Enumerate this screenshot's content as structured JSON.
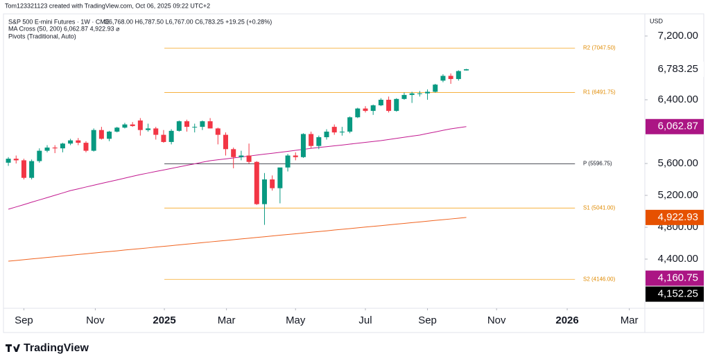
{
  "credit": "Tom123321123 created with TradingView.com, Oct 06, 2025 09:22 UTC+2",
  "brand": "TradingView",
  "chart_data": {
    "type": "candlestick",
    "title": "S&P 500 E-mini Futures · 1W · CME",
    "ohlc_text": "O6,768.00 H6,787.50 L6,767.00 C6,783.25 +19.25 (+0.28%)",
    "indicators": [
      "MA Cross (50, 200)  6,062.87  4,922.93  ⌀",
      "Pivots (Traditional, Auto)"
    ],
    "currency": "USD",
    "up_color": "#089981",
    "down_color": "#f23645",
    "open": [
      5610,
      5660,
      5640,
      5420,
      5630,
      5760,
      5800,
      5790,
      5850,
      5890,
      5860,
      5760,
      6020,
      5910,
      6000,
      6050,
      6090,
      6140,
      6020,
      6040,
      5960,
      5870,
      6010,
      6130,
      6060,
      6060,
      6130,
      6040,
      5960,
      5780,
      5680,
      5700,
      5620,
      5090,
      5400,
      5290,
      5550,
      5700,
      5680,
      5970,
      5820,
      5930,
      6060,
      5990,
      6000,
      6180,
      6290,
      6260,
      6330,
      6400,
      6260,
      6410,
      6460,
      6480,
      6480,
      6500,
      6640,
      6700,
      6660,
      6768
    ],
    "high": [
      5680,
      5700,
      5660,
      5650,
      5790,
      5830,
      5830,
      5860,
      5910,
      5920,
      5880,
      6040,
      6060,
      6010,
      6060,
      6110,
      6120,
      6170,
      6100,
      6060,
      6020,
      6030,
      6140,
      6150,
      6100,
      6140,
      6170,
      6050,
      5990,
      5800,
      5760,
      5850,
      5630,
      5480,
      5450,
      5540,
      5720,
      5740,
      5980,
      6000,
      5950,
      6030,
      6090,
      6060,
      6190,
      6300,
      6320,
      6340,
      6420,
      6440,
      6420,
      6490,
      6500,
      6510,
      6530,
      6600,
      6720,
      6730,
      6770,
      6787.5
    ],
    "low": [
      5570,
      5600,
      5400,
      5400,
      5610,
      5740,
      5730,
      5740,
      5830,
      5830,
      5740,
      5750,
      5900,
      5880,
      5990,
      6040,
      6060,
      5950,
      6000,
      5900,
      5860,
      5840,
      6000,
      6000,
      5990,
      6020,
      6040,
      5840,
      5700,
      5540,
      5640,
      5600,
      5080,
      4830,
      5260,
      5100,
      5500,
      5640,
      5670,
      5790,
      5780,
      5900,
      5960,
      5950,
      5980,
      6170,
      6240,
      6210,
      6320,
      6240,
      6250,
      6400,
      6360,
      6440,
      6400,
      6490,
      6620,
      6600,
      6640,
      6767
    ],
    "close": [
      5660,
      5640,
      5420,
      5630,
      5760,
      5800,
      5790,
      5850,
      5890,
      5860,
      5760,
      6020,
      5910,
      6000,
      6050,
      6090,
      6070,
      6020,
      6040,
      5960,
      5870,
      6010,
      6130,
      6060,
      6060,
      6130,
      6040,
      5960,
      5780,
      5680,
      5700,
      5620,
      5090,
      5400,
      5290,
      5550,
      5700,
      5680,
      5970,
      5820,
      5930,
      6000,
      5990,
      6000,
      6180,
      6290,
      6260,
      6330,
      6400,
      6260,
      6410,
      6460,
      6480,
      6480,
      6500,
      6590,
      6700,
      6660,
      6760,
      6783.25
    ],
    "series": [
      {
        "color": "#c2188f",
        "values": [
          5026,
          5055,
          5084,
          5114,
          5143,
          5172,
          5201,
          5230,
          5260,
          5282,
          5305,
          5327,
          5350,
          5372,
          5394,
          5416,
          5439,
          5461,
          5480,
          5500,
          5519,
          5538,
          5558,
          5577,
          5596,
          5616,
          5635,
          5647,
          5658,
          5670,
          5682,
          5693,
          5705,
          5717,
          5728,
          5740,
          5752,
          5765,
          5777,
          5790,
          5801,
          5811,
          5822,
          5832,
          5843,
          5854,
          5865,
          5876,
          5887,
          5901,
          5915,
          5929,
          5943,
          5957,
          5977,
          5996,
          6016,
          6035,
          6049,
          6062.87
        ]
      },
      {
        "color": "#f0621e",
        "values": [
          4374,
          4383,
          4393,
          4402,
          4411,
          4421,
          4430,
          4439,
          4448,
          4458,
          4467,
          4476,
          4486,
          4495,
          4504,
          4514,
          4523,
          4532,
          4541,
          4551,
          4560,
          4569,
          4579,
          4588,
          4597,
          4607,
          4616,
          4625,
          4634,
          4644,
          4653,
          4662,
          4672,
          4681,
          4690,
          4700,
          4709,
          4718,
          4727,
          4737,
          4746,
          4755,
          4765,
          4774,
          4783,
          4793,
          4802,
          4811,
          4820,
          4830,
          4839,
          4848,
          4858,
          4867,
          4876,
          4886,
          4895,
          4904,
          4913,
          4922.93
        ]
      }
    ],
    "pivot_range": [
      20.1,
      73
    ],
    "pivots": [
      {
        "value": 7047.5,
        "label": "R2 (7047.50)",
        "color": "#f5a623"
      },
      {
        "value": 6491.75,
        "label": "R1 (6491.75)",
        "color": "#f5a623"
      },
      {
        "value": 5596.75,
        "label": "P (5596.75)",
        "color": "#131722"
      },
      {
        "value": 5041,
        "label": "S1 (5041.00)",
        "color": "#f5a623"
      },
      {
        "value": 4146,
        "label": "S2 (4146.00)",
        "color": "#f5a623"
      }
    ],
    "badges": [
      {
        "value": 6783.25,
        "label": "6,783.25",
        "color": "#ffffff"
      },
      {
        "value": 6062.87,
        "label": "6,062.87",
        "color": "#ab1584"
      },
      {
        "value": 4922.93,
        "label": "4,922.93",
        "color": "#e65100"
      },
      {
        "value": 4160.75,
        "label": "4,160.75",
        "color": "#ab1584"
      },
      {
        "value": 4152.25,
        "label": "4,152.25",
        "color": "#000000"
      }
    ],
    "xlim": [
      -0.63,
      82
    ],
    "xticks": [
      {
        "value": 2,
        "label": "Sep"
      },
      {
        "value": 11.2,
        "label": "Nov"
      },
      {
        "value": 20.1,
        "label": "2025"
      },
      {
        "value": 28.1,
        "label": "Mar"
      },
      {
        "value": 37,
        "label": "May"
      },
      {
        "value": 46,
        "label": "Jul"
      },
      {
        "value": 54,
        "label": "Sep"
      },
      {
        "value": 62.9,
        "label": "Nov"
      },
      {
        "value": 72,
        "label": "2026"
      },
      {
        "value": 80,
        "label": "Mar"
      }
    ],
    "ylim": [
      3783,
      7478
    ],
    "yticks": [
      {
        "value": 7200,
        "label": "7,200.00"
      },
      {
        "value": 6400,
        "label": "6,400.00"
      },
      {
        "value": 5600,
        "label": "5,600.00"
      },
      {
        "value": 5200,
        "label": "5,200.00"
      },
      {
        "value": 4800,
        "label": "4,800.00"
      },
      {
        "value": 4400,
        "label": "4,400.00"
      }
    ],
    "grid": false
  }
}
